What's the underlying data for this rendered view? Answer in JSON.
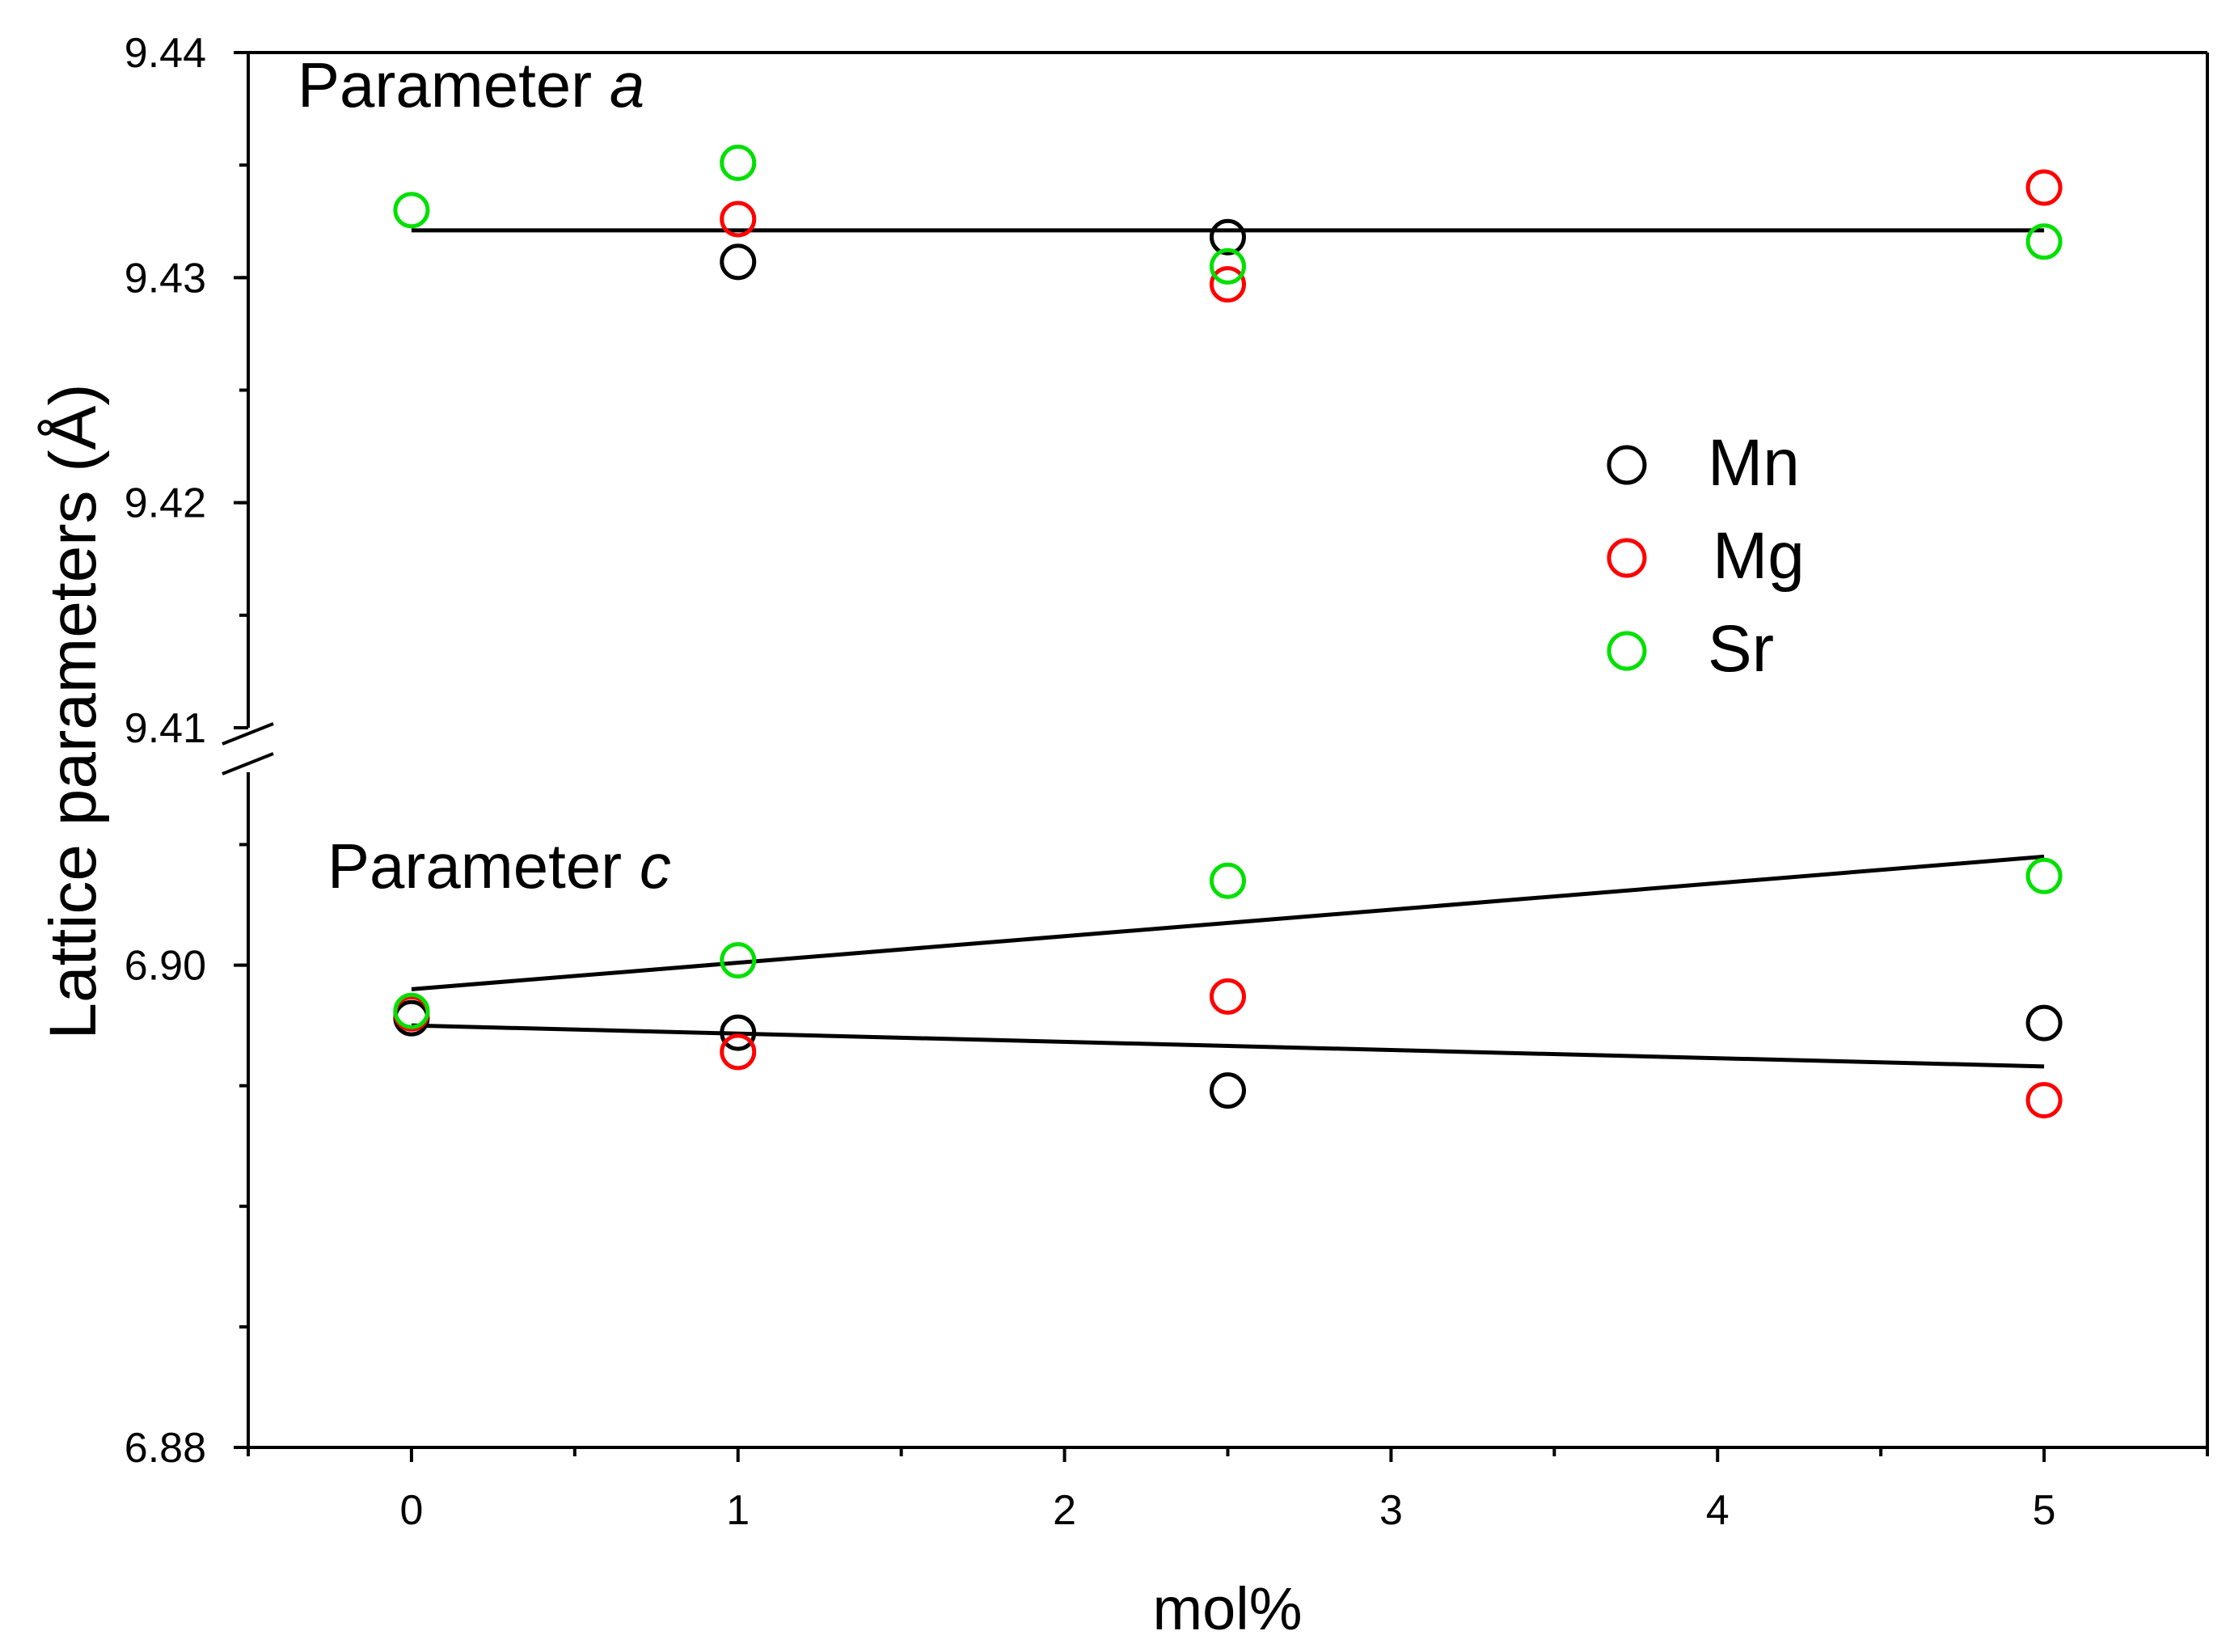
{
  "chart_data": {
    "type": "scatter",
    "xlabel": "mol%",
    "ylabel": "Lattice parameters",
    "ylabel_unit": "Å",
    "xlim": [
      -0.5,
      5.5
    ],
    "x_ticks": [
      "0",
      "1",
      "2",
      "3",
      "4",
      "5"
    ],
    "legend_position": "right-middle",
    "panels": [
      {
        "title": "Parameter",
        "title_var": "a",
        "ylim": [
          9.41,
          9.44
        ],
        "y_ticks": [
          "9.41",
          "9.42",
          "9.43",
          "9.44"
        ],
        "series": [
          {
            "name": "Mn",
            "color": "#000000",
            "x": [
              1,
              2.5
            ],
            "values": [
              9.4307,
              9.4318
            ]
          },
          {
            "name": "Mg",
            "color": "#ff0000",
            "x": [
              1,
              2.5,
              5
            ],
            "values": [
              9.4326,
              9.4297,
              9.434
            ]
          },
          {
            "name": "Sr",
            "color": "#00e000",
            "x": [
              0,
              1,
              2.5,
              5
            ],
            "values": [
              9.433,
              9.4351,
              9.4305,
              9.4316
            ]
          }
        ],
        "fits": [
          {
            "x": [
              0,
              5
            ],
            "values": [
              9.4321,
              9.4321
            ]
          }
        ]
      },
      {
        "title": "Parameter",
        "title_var": "c",
        "ylim": [
          6.88,
          6.908
        ],
        "y_ticks": [
          "6.88",
          "6.90"
        ],
        "series": [
          {
            "name": "Mn",
            "color": "#000000",
            "x": [
              0,
              1,
              2.5,
              5
            ],
            "values": [
              6.8978,
              6.8972,
              6.8948,
              6.8976
            ]
          },
          {
            "name": "Mg",
            "color": "#ff0000",
            "x": [
              0,
              1,
              2.5,
              5
            ],
            "values": [
              6.898,
              6.8964,
              6.8987,
              6.8944
            ]
          },
          {
            "name": "Sr",
            "color": "#00e000",
            "x": [
              0,
              1,
              2.5,
              5
            ],
            "values": [
              6.8981,
              6.9002,
              6.9035,
              6.9037
            ]
          }
        ],
        "fits": [
          {
            "x": [
              0,
              5
            ],
            "values": [
              6.899,
              6.9045
            ]
          },
          {
            "x": [
              0,
              5
            ],
            "values": [
              6.8975,
              6.8958
            ]
          }
        ]
      }
    ],
    "legend": [
      {
        "name": "Mn",
        "color": "#000000"
      },
      {
        "name": "Mg",
        "color": "#ff0000"
      },
      {
        "name": "Sr",
        "color": "#00e000"
      }
    ]
  }
}
